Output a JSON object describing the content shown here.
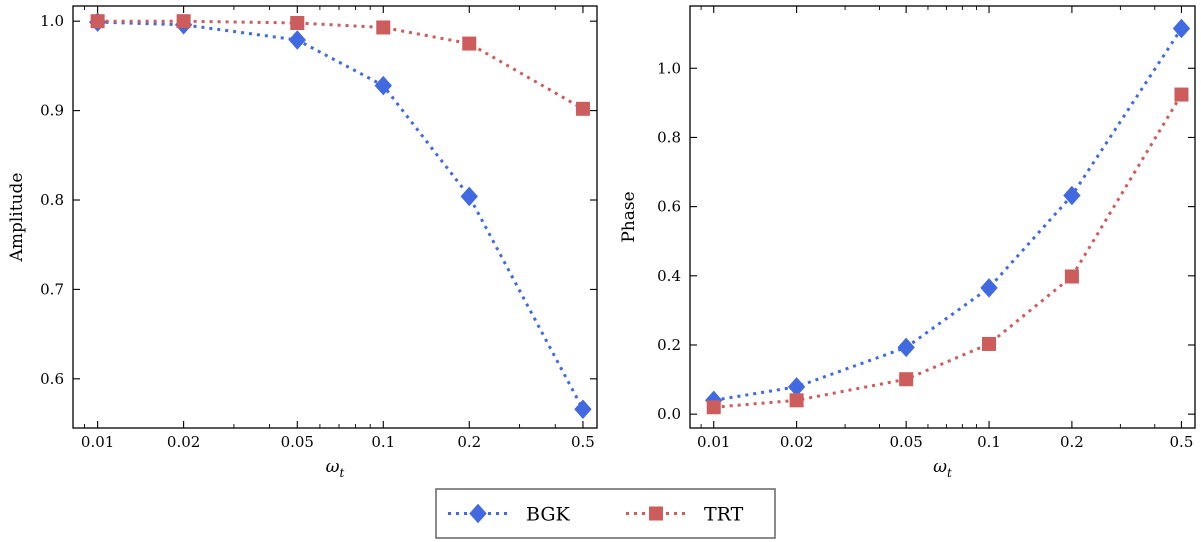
{
  "chart_data": [
    {
      "type": "line",
      "x_scale": "log",
      "xlabel": "ω",
      "xlabel_sub": "t",
      "ylabel": "Amplitude",
      "x": [
        0.01,
        0.02,
        0.05,
        0.1,
        0.2,
        0.5
      ],
      "x_tick_labels": [
        "0.01",
        "0.02",
        "0.05",
        "0.1",
        "0.2",
        "0.5"
      ],
      "xlim": [
        0.0082,
        0.56
      ],
      "ylim": [
        0.545,
        1.017
      ],
      "y_ticks": [
        0.6,
        0.7,
        0.8,
        0.9,
        1.0
      ],
      "y_tick_labels": [
        "0.6",
        "0.7",
        "0.8",
        "0.9",
        "1.0"
      ],
      "grid": false,
      "series": [
        {
          "name": "BGK",
          "color": "#4169e1",
          "marker": "diamond",
          "values": [
            0.999,
            0.996,
            0.979,
            0.928,
            0.804,
            0.566
          ]
        },
        {
          "name": "TRT",
          "color": "#cd5c5c",
          "marker": "square",
          "values": [
            1.0,
            1.0,
            0.998,
            0.993,
            0.975,
            0.902
          ]
        }
      ]
    },
    {
      "type": "line",
      "x_scale": "log",
      "xlabel": "ω",
      "xlabel_sub": "t",
      "ylabel": "Phase",
      "x": [
        0.01,
        0.02,
        0.05,
        0.1,
        0.2,
        0.5
      ],
      "x_tick_labels": [
        "0.01",
        "0.02",
        "0.05",
        "0.1",
        "0.2",
        "0.5"
      ],
      "xlim": [
        0.0082,
        0.56
      ],
      "ylim": [
        -0.04,
        1.18
      ],
      "y_ticks": [
        0.0,
        0.2,
        0.4,
        0.6,
        0.8,
        1.0
      ],
      "y_tick_labels": [
        "0.0",
        "0.2",
        "0.4",
        "0.6",
        "0.8",
        "1.0"
      ],
      "grid": false,
      "series": [
        {
          "name": "BGK",
          "color": "#4169e1",
          "marker": "diamond",
          "values": [
            0.04,
            0.079,
            0.193,
            0.365,
            0.632,
            1.115
          ]
        },
        {
          "name": "TRT",
          "color": "#cd5c5c",
          "marker": "square",
          "values": [
            0.02,
            0.04,
            0.101,
            0.203,
            0.398,
            0.924
          ]
        }
      ]
    }
  ],
  "legend": {
    "placement": "bottom-center",
    "entries": [
      {
        "label": "BGK",
        "color": "#4169e1",
        "marker": "diamond"
      },
      {
        "label": "TRT",
        "color": "#cd5c5c",
        "marker": "square"
      }
    ]
  }
}
